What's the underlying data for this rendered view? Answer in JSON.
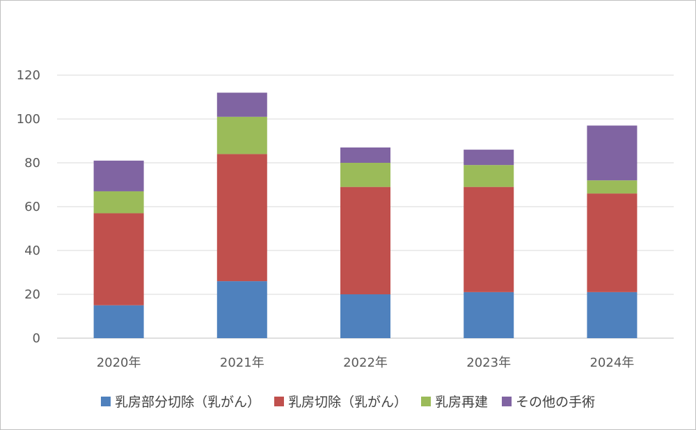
{
  "chart_data": {
    "type": "bar",
    "stacked": true,
    "categories": [
      "2020年",
      "2021年",
      "2022年",
      "2023年",
      "2024年"
    ],
    "series": [
      {
        "name": "乳房部分切除（乳がん）",
        "color": "#4f81bd",
        "values": [
          15,
          26,
          20,
          21,
          21
        ]
      },
      {
        "name": "乳房切除（乳がん）",
        "color": "#c0504d",
        "values": [
          42,
          58,
          49,
          48,
          45
        ]
      },
      {
        "name": "乳房再建",
        "color": "#9bbb59",
        "values": [
          10,
          17,
          11,
          10,
          6
        ]
      },
      {
        "name": "その他の手術",
        "color": "#8064a2",
        "values": [
          14,
          11,
          7,
          7,
          25
        ]
      }
    ],
    "y_ticks": [
      "0",
      "20",
      "40",
      "60",
      "80",
      "100",
      "120"
    ],
    "ylim": [
      0,
      120
    ],
    "grid": true,
    "legend": "bottom",
    "title": "",
    "xlabel": "",
    "ylabel": ""
  }
}
